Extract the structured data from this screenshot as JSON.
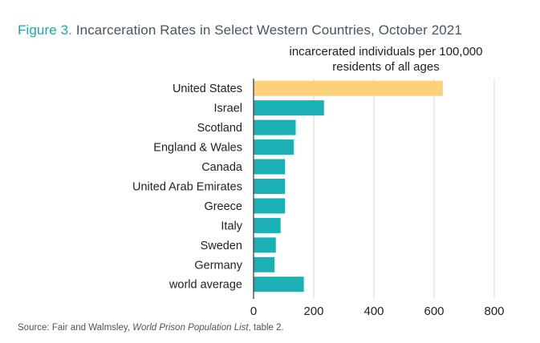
{
  "figure": {
    "label": "Figure 3.",
    "title": "Incarceration Rates in Select Western Countries, October 2021"
  },
  "source": {
    "prefix": "Source: Fair and Walmsley, ",
    "italic": "World Prison Population List",
    "suffix": ", table 2."
  },
  "colors": {
    "highlight": "#fdd17a",
    "bar": "#1bb0b5",
    "grid": "#d9d9d9"
  },
  "chart_data": {
    "type": "bar",
    "orientation": "horizontal",
    "title": "Incarceration Rates in Select Western Countries, October 2021",
    "xlabel_lines": [
      "incarcerated individuals per 100,000",
      "residents of all ages"
    ],
    "ylabel": "",
    "categories": [
      "United States",
      "Israel",
      "Scotland",
      "England & Wales",
      "Canada",
      "United Arab Emirates",
      "Greece",
      "Italy",
      "Sweden",
      "Germany",
      "world average"
    ],
    "values": [
      629,
      234,
      140,
      134,
      104,
      104,
      104,
      90,
      74,
      70,
      167
    ],
    "highlighted": "United States",
    "xlim": [
      0,
      800
    ],
    "xticks": [
      0,
      200,
      400,
      600,
      800
    ],
    "grid": "vertical"
  }
}
